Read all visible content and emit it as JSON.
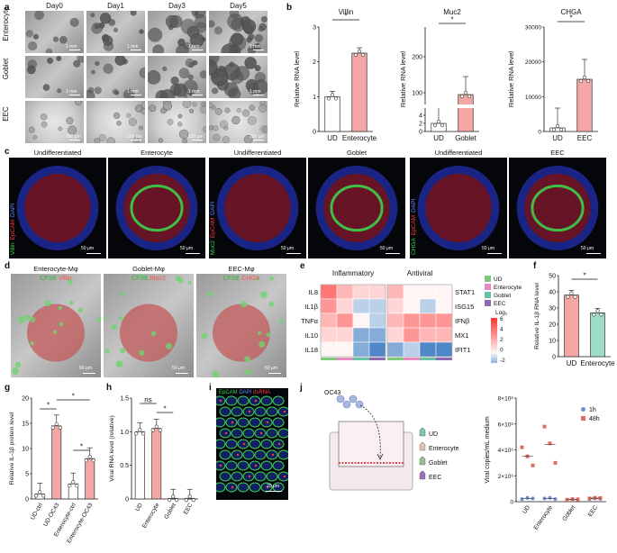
{
  "panels": {
    "a": "a",
    "b": "b",
    "c": "c",
    "d": "d",
    "e": "e",
    "f": "f",
    "g": "g",
    "h": "h",
    "i": "i",
    "j": "j"
  },
  "panel_a": {
    "columns": [
      "Day0",
      "Day1",
      "Day3",
      "Day5"
    ],
    "rows": [
      "Enterocyte",
      "Goblet",
      "EEC"
    ],
    "scalebars_mm": [
      "1 mm",
      "1 mm",
      "1 mm",
      "1 mm",
      "1 mm",
      "1 mm",
      "1 mm",
      "1 mm"
    ],
    "scalebars_um": [
      "100 μm",
      "100 μm",
      "100 μm",
      "100 μm"
    ]
  },
  "panel_c": {
    "groups": [
      {
        "titles": [
          "Undifferentiated",
          "Enterocyte"
        ],
        "stain": [
          "Villin",
          "EpCAM",
          "DAPI"
        ],
        "scale": [
          "50 μm",
          "50 μm"
        ]
      },
      {
        "titles": [
          "Undifferentiated",
          "Goblet"
        ],
        "stain": [
          "Muc2",
          "EpCAM",
          "DAPI"
        ],
        "scale": [
          "50 μm",
          "50 μm"
        ]
      },
      {
        "titles": [
          "Undifferentiated",
          "EEC"
        ],
        "stain": [
          "CHGA",
          "EpCAM",
          "DAPI"
        ],
        "scale": [
          "50 μm",
          "50 μm"
        ]
      }
    ]
  },
  "panel_d": {
    "titles": [
      "Enterocyte-Mφ",
      "Goblet-Mφ",
      "EEC-Mφ"
    ],
    "labels": [
      [
        "CFSE",
        "Villin"
      ],
      [
        "CFSE",
        "Muc2"
      ],
      [
        "CFSE",
        "CHGA"
      ]
    ],
    "scale": [
      "50 μm",
      "50 μm",
      "50 μm"
    ]
  },
  "panel_e": {
    "headers": [
      "Inflammatory",
      "Antiviral"
    ],
    "row_left": [
      "IL8",
      "IL1β",
      "TNFα",
      "IL10",
      "IL18"
    ],
    "row_right": [
      "STAT1",
      "ISG15",
      "IFNβ",
      "MX1",
      "IFIT1"
    ],
    "legend": [
      "UD",
      "Enterocyte",
      "Goblet",
      "EEC"
    ],
    "legend_colors": [
      "#7fc97f",
      "#e78ac3",
      "#66c2a5",
      "#8c6bb1"
    ],
    "colorbar_title": "Log₂",
    "colorbar_ticks": [
      "6",
      "4",
      "2",
      "0",
      "-2"
    ]
  },
  "panel_i": {
    "labels": [
      "EpCAM",
      "DAPI",
      "dsRNA"
    ],
    "scale": "20 μm"
  },
  "panel_j": {
    "virus": "OC43",
    "legend": [
      "UD",
      "Enterocyte",
      "Goblet",
      "EEC"
    ]
  },
  "chart_data": [
    {
      "id": "b1",
      "type": "bar",
      "title": "Villin",
      "ylabel": "Relative RNA level",
      "categories": [
        "UD",
        "Enterocyte"
      ],
      "values": [
        1.0,
        2.25
      ],
      "points": [
        [
          1.0,
          1.05,
          0.98,
          0.95
        ],
        [
          2.05,
          2.3,
          2.4,
          2.25
        ]
      ],
      "ylim": [
        0,
        3
      ],
      "yticks": [
        "0",
        "1",
        "2",
        "3"
      ],
      "sig": "*"
    },
    {
      "id": "b2",
      "type": "bar",
      "title": "Muc2",
      "ylabel": "Relative RNA level",
      "categories": [
        "UD",
        "Goblet"
      ],
      "values": [
        1.0,
        100
      ],
      "ylim": [
        0,
        250
      ],
      "yticks": [
        "0",
        "2",
        "4",
        "100",
        "200"
      ],
      "broken": true,
      "sig": "*"
    },
    {
      "id": "b3",
      "type": "bar",
      "title": "CHGA",
      "ylabel": "Relative RNA level",
      "categories": [
        "UD",
        "EEC"
      ],
      "values": [
        1000,
        18000
      ],
      "ylim": [
        0,
        30000
      ],
      "yticks": [
        "0",
        "10000",
        "20000",
        "30000"
      ],
      "sig": "*"
    },
    {
      "id": "f",
      "type": "bar",
      "ylabel": "Relative IL-1β RNA level",
      "categories": [
        "UD",
        "Enterocyte"
      ],
      "values": [
        38,
        27
      ],
      "ylim": [
        0,
        50
      ],
      "yticks": [
        "0",
        "10",
        "20",
        "30",
        "40",
        "50"
      ],
      "sig": "*"
    },
    {
      "id": "g",
      "type": "bar",
      "ylabel": "Relative IL-1β protein level",
      "categories": [
        "UD-ctrl",
        "UD-OC43",
        "Enterocyte-ctrl",
        "Enterocyte-OC43"
      ],
      "values": [
        1,
        14.5,
        3,
        8
      ],
      "ylim": [
        0,
        20
      ],
      "yticks": [
        "0",
        "5",
        "10",
        "15",
        "20"
      ],
      "sig": [
        "*",
        "*",
        "*"
      ]
    },
    {
      "id": "h",
      "type": "bar",
      "ylabel": "Viral RNA level (relative)",
      "categories": [
        "UD",
        "Enterocyte",
        "Goblet",
        "EEC"
      ],
      "values": [
        1.0,
        1.05,
        0.01,
        0.01
      ],
      "ylim": [
        0,
        1.5
      ],
      "yticks": [
        "0",
        "0.5",
        "1.0",
        "1.5"
      ],
      "sig": [
        "ns",
        "*"
      ]
    },
    {
      "id": "j",
      "type": "scatter",
      "ylabel": "Viral copies/mL medium",
      "categories": [
        "UD",
        "Enterocyte",
        "Goblet",
        "EEC"
      ],
      "series": [
        {
          "name": "1h",
          "values": [
            [
              200000,
              300000,
              250000
            ],
            [
              250000,
              300000,
              200000
            ],
            [
              150000,
              200000,
              180000
            ],
            [
              200000,
              250000,
              220000
            ]
          ]
        },
        {
          "name": "48h",
          "values": [
            [
              4200000,
              3500000,
              2800000
            ],
            [
              5800000,
              4500000,
              3000000
            ],
            [
              150000,
              200000,
              180000
            ],
            [
              250000,
              300000,
              280000
            ]
          ]
        }
      ],
      "ylim": [
        0,
        8000000
      ],
      "yticks": [
        "0",
        "2×10⁶",
        "4×10⁶",
        "6×10⁶",
        "8×10⁶"
      ]
    }
  ]
}
